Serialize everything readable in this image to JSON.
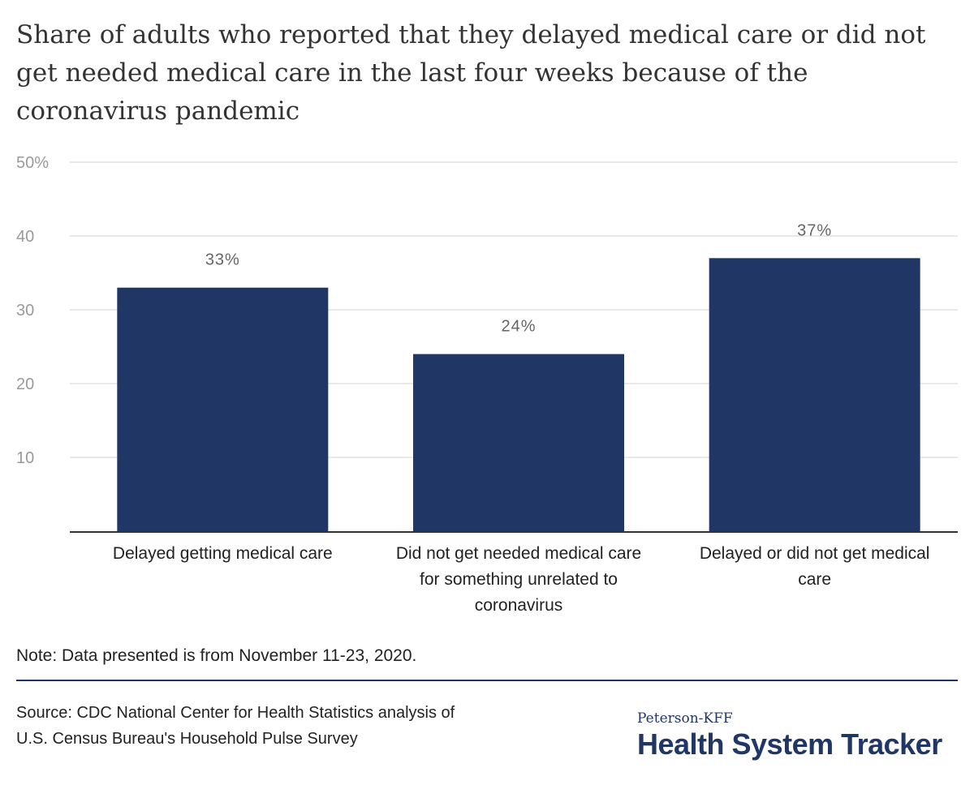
{
  "title": "Share of adults who reported that they delayed medical care or did not get needed medical care in the last four weeks because of the coronavirus pandemic",
  "note": "Note: Data presented is from November 11-23, 2020.",
  "source_line1": "Source: CDC National Center for Health Statistics analysis of",
  "source_line2": "U.S. Census Bureau's Household Pulse Survey",
  "logo": {
    "top": "Peterson-KFF",
    "main": "Health System Tracker"
  },
  "colors": {
    "bar": "#203766",
    "grid": "#e2e2e2",
    "axis": "#333333",
    "divider": "#1f3666"
  },
  "chart_data": {
    "type": "bar",
    "categories": [
      "Delayed getting medical care",
      "Did not get needed medical care for something unrelated to coronavirus",
      "Delayed or did not get medical care"
    ],
    "values": [
      33,
      24,
      37
    ],
    "value_labels": [
      "33%",
      "24%",
      "37%"
    ],
    "ylim": [
      0,
      50
    ],
    "yticks": [
      10,
      20,
      30,
      40,
      50
    ],
    "ytick_labels": [
      "10",
      "20",
      "30",
      "40",
      "50%"
    ],
    "grid": true,
    "xlabel": "",
    "ylabel": ""
  }
}
